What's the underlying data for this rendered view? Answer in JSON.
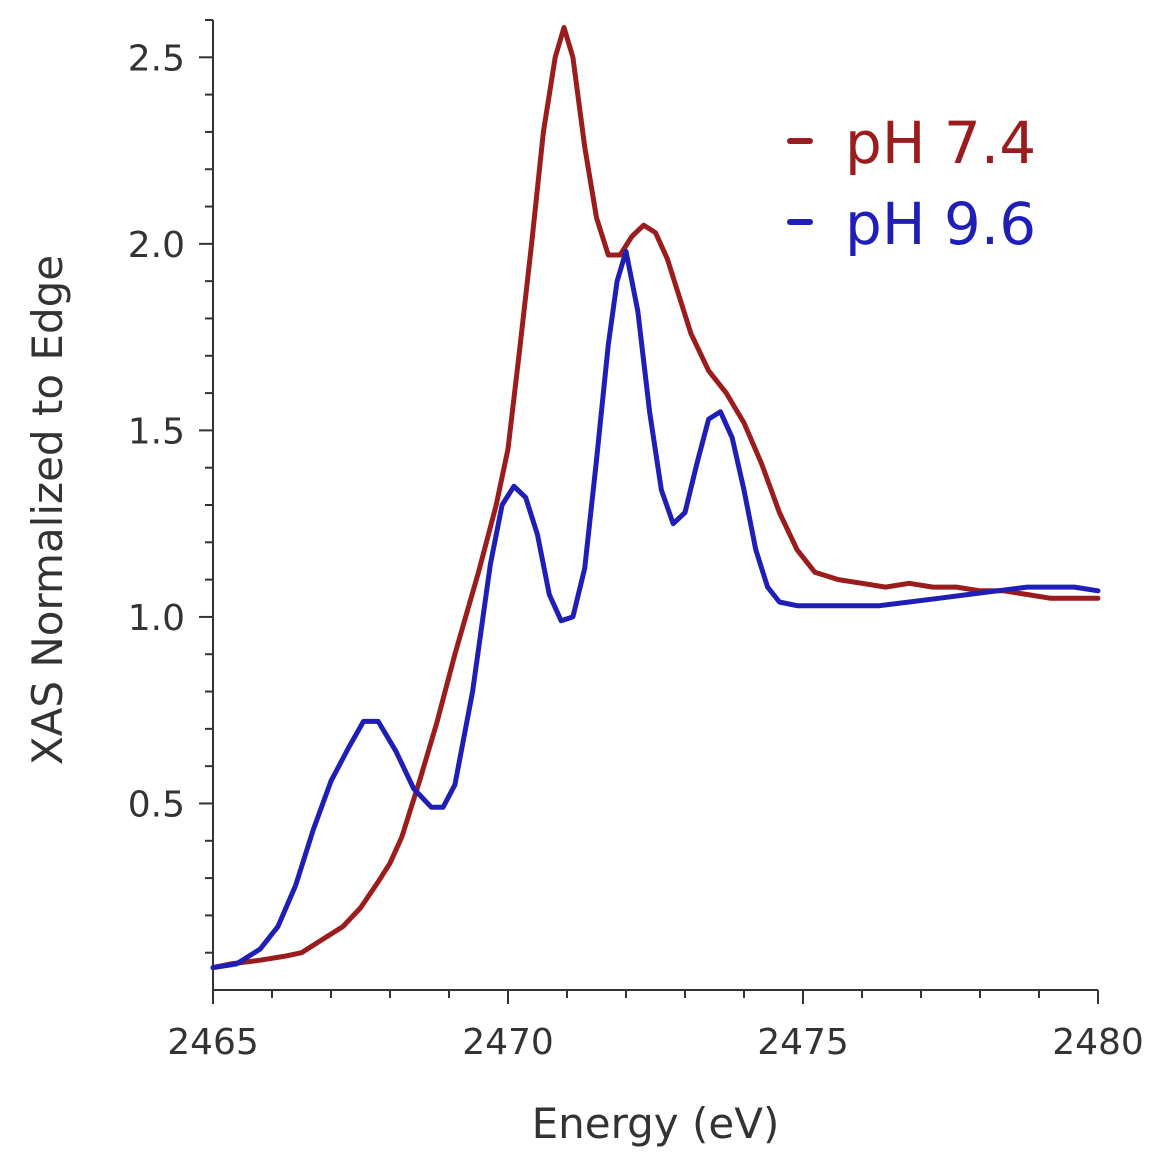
{
  "chart_data": {
    "type": "line",
    "title": "",
    "xlabel": "Energy (eV)",
    "ylabel": "XAS Normalized to Edge",
    "xlim": [
      2465,
      2480
    ],
    "ylim": [
      0,
      2.6
    ],
    "xticks": [
      2465,
      2470,
      2475,
      2480
    ],
    "xtick_labels": [
      "2465",
      "2470",
      "2475",
      "2480"
    ],
    "yticks": [
      0.5,
      1.0,
      1.5,
      2.0,
      2.5
    ],
    "ytick_labels": [
      "0.5",
      "1.0",
      "1.5",
      "2.0",
      "2.5"
    ],
    "grid": false,
    "legend_position": "top-right",
    "series": [
      {
        "name": "pH 7.4",
        "color": "#9b1c1c",
        "points": [
          [
            2465.0,
            0.06
          ],
          [
            2465.3,
            0.07
          ],
          [
            2465.8,
            0.08
          ],
          [
            2466.2,
            0.09
          ],
          [
            2466.5,
            0.1
          ],
          [
            2466.8,
            0.13
          ],
          [
            2467.2,
            0.17
          ],
          [
            2467.5,
            0.22
          ],
          [
            2467.8,
            0.29
          ],
          [
            2468.0,
            0.34
          ],
          [
            2468.2,
            0.41
          ],
          [
            2468.5,
            0.56
          ],
          [
            2468.8,
            0.72
          ],
          [
            2469.1,
            0.9
          ],
          [
            2469.5,
            1.12
          ],
          [
            2469.8,
            1.3
          ],
          [
            2470.0,
            1.45
          ],
          [
            2470.2,
            1.72
          ],
          [
            2470.4,
            2.0
          ],
          [
            2470.6,
            2.3
          ],
          [
            2470.8,
            2.5
          ],
          [
            2470.95,
            2.58
          ],
          [
            2471.1,
            2.5
          ],
          [
            2471.3,
            2.26
          ],
          [
            2471.5,
            2.07
          ],
          [
            2471.7,
            1.97
          ],
          [
            2471.9,
            1.97
          ],
          [
            2472.1,
            2.02
          ],
          [
            2472.3,
            2.05
          ],
          [
            2472.5,
            2.03
          ],
          [
            2472.7,
            1.96
          ],
          [
            2472.9,
            1.86
          ],
          [
            2473.1,
            1.76
          ],
          [
            2473.4,
            1.66
          ],
          [
            2473.7,
            1.6
          ],
          [
            2474.0,
            1.52
          ],
          [
            2474.3,
            1.41
          ],
          [
            2474.6,
            1.28
          ],
          [
            2474.9,
            1.18
          ],
          [
            2475.2,
            1.12
          ],
          [
            2475.6,
            1.1
          ],
          [
            2476.0,
            1.09
          ],
          [
            2476.4,
            1.08
          ],
          [
            2476.8,
            1.09
          ],
          [
            2477.2,
            1.08
          ],
          [
            2477.6,
            1.08
          ],
          [
            2478.0,
            1.07
          ],
          [
            2478.4,
            1.07
          ],
          [
            2478.8,
            1.06
          ],
          [
            2479.2,
            1.05
          ],
          [
            2479.6,
            1.05
          ],
          [
            2480.0,
            1.05
          ]
        ]
      },
      {
        "name": "pH 9.6",
        "color": "#1f1fb8",
        "points": [
          [
            2465.0,
            0.06
          ],
          [
            2465.4,
            0.07
          ],
          [
            2465.8,
            0.11
          ],
          [
            2466.1,
            0.17
          ],
          [
            2466.4,
            0.28
          ],
          [
            2466.7,
            0.43
          ],
          [
            2467.0,
            0.56
          ],
          [
            2467.3,
            0.65
          ],
          [
            2467.55,
            0.72
          ],
          [
            2467.8,
            0.72
          ],
          [
            2468.1,
            0.64
          ],
          [
            2468.4,
            0.54
          ],
          [
            2468.7,
            0.49
          ],
          [
            2468.9,
            0.49
          ],
          [
            2469.1,
            0.55
          ],
          [
            2469.4,
            0.8
          ],
          [
            2469.7,
            1.14
          ],
          [
            2469.9,
            1.3
          ],
          [
            2470.1,
            1.35
          ],
          [
            2470.3,
            1.32
          ],
          [
            2470.5,
            1.22
          ],
          [
            2470.7,
            1.06
          ],
          [
            2470.9,
            0.99
          ],
          [
            2471.1,
            1.0
          ],
          [
            2471.3,
            1.13
          ],
          [
            2471.5,
            1.42
          ],
          [
            2471.7,
            1.73
          ],
          [
            2471.85,
            1.9
          ],
          [
            2472.0,
            1.98
          ],
          [
            2472.2,
            1.82
          ],
          [
            2472.4,
            1.55
          ],
          [
            2472.6,
            1.34
          ],
          [
            2472.8,
            1.25
          ],
          [
            2473.0,
            1.28
          ],
          [
            2473.2,
            1.41
          ],
          [
            2473.4,
            1.53
          ],
          [
            2473.6,
            1.55
          ],
          [
            2473.8,
            1.48
          ],
          [
            2474.0,
            1.34
          ],
          [
            2474.2,
            1.18
          ],
          [
            2474.4,
            1.08
          ],
          [
            2474.6,
            1.04
          ],
          [
            2474.9,
            1.03
          ],
          [
            2475.3,
            1.03
          ],
          [
            2475.8,
            1.03
          ],
          [
            2476.3,
            1.03
          ],
          [
            2476.8,
            1.04
          ],
          [
            2477.3,
            1.05
          ],
          [
            2477.8,
            1.06
          ],
          [
            2478.3,
            1.07
          ],
          [
            2478.8,
            1.08
          ],
          [
            2479.2,
            1.08
          ],
          [
            2479.6,
            1.08
          ],
          [
            2480.0,
            1.07
          ]
        ]
      }
    ]
  }
}
